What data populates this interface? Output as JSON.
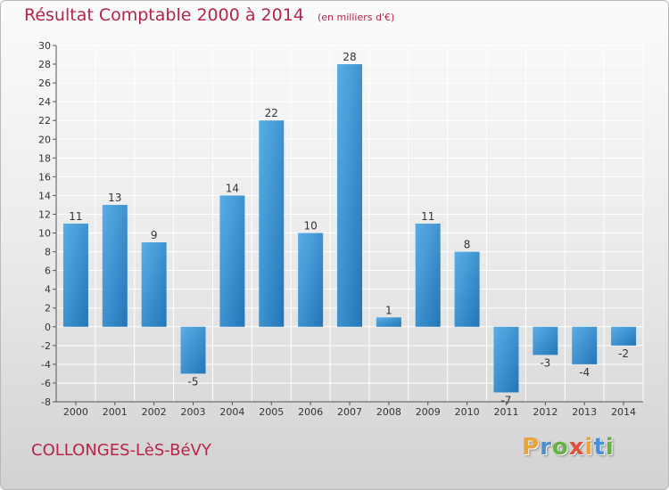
{
  "header": {
    "title": "Résultat Comptable 2000 à 2014",
    "unit": "(en milliers d'€)"
  },
  "footer": {
    "city": "COLLONGES-LèS-BéVY"
  },
  "logo": {
    "letters": [
      "P",
      "r",
      "o",
      "x",
      "i",
      "t",
      "i"
    ],
    "colors": [
      "#e8a33a",
      "#4a8fd3",
      "#68b245",
      "#e24f3b",
      "#e8a33a",
      "#4a8fd3",
      "#68b245"
    ]
  },
  "colors": {
    "accent": "#b5254b",
    "bar_light": "#5aaee6",
    "bar_dark": "#2276b8",
    "grid": "#ffffff",
    "axis": "#555555"
  },
  "chart_data": {
    "type": "bar",
    "title": "Résultat Comptable 2000 à 2014",
    "categories": [
      "2000",
      "2001",
      "2002",
      "2003",
      "2004",
      "2005",
      "2006",
      "2007",
      "2008",
      "2009",
      "2010",
      "2011",
      "2012",
      "2013",
      "2014"
    ],
    "values": [
      11,
      13,
      9,
      -5,
      14,
      22,
      10,
      28,
      1,
      11,
      8,
      -7,
      -3,
      -4,
      -2
    ],
    "ylim": [
      -8,
      30
    ],
    "yticks": [
      30,
      28,
      26,
      24,
      22,
      20,
      18,
      16,
      14,
      12,
      10,
      8,
      6,
      4,
      2,
      0,
      -2,
      -4,
      -6,
      -8
    ],
    "grid": true,
    "data_labels": true
  }
}
